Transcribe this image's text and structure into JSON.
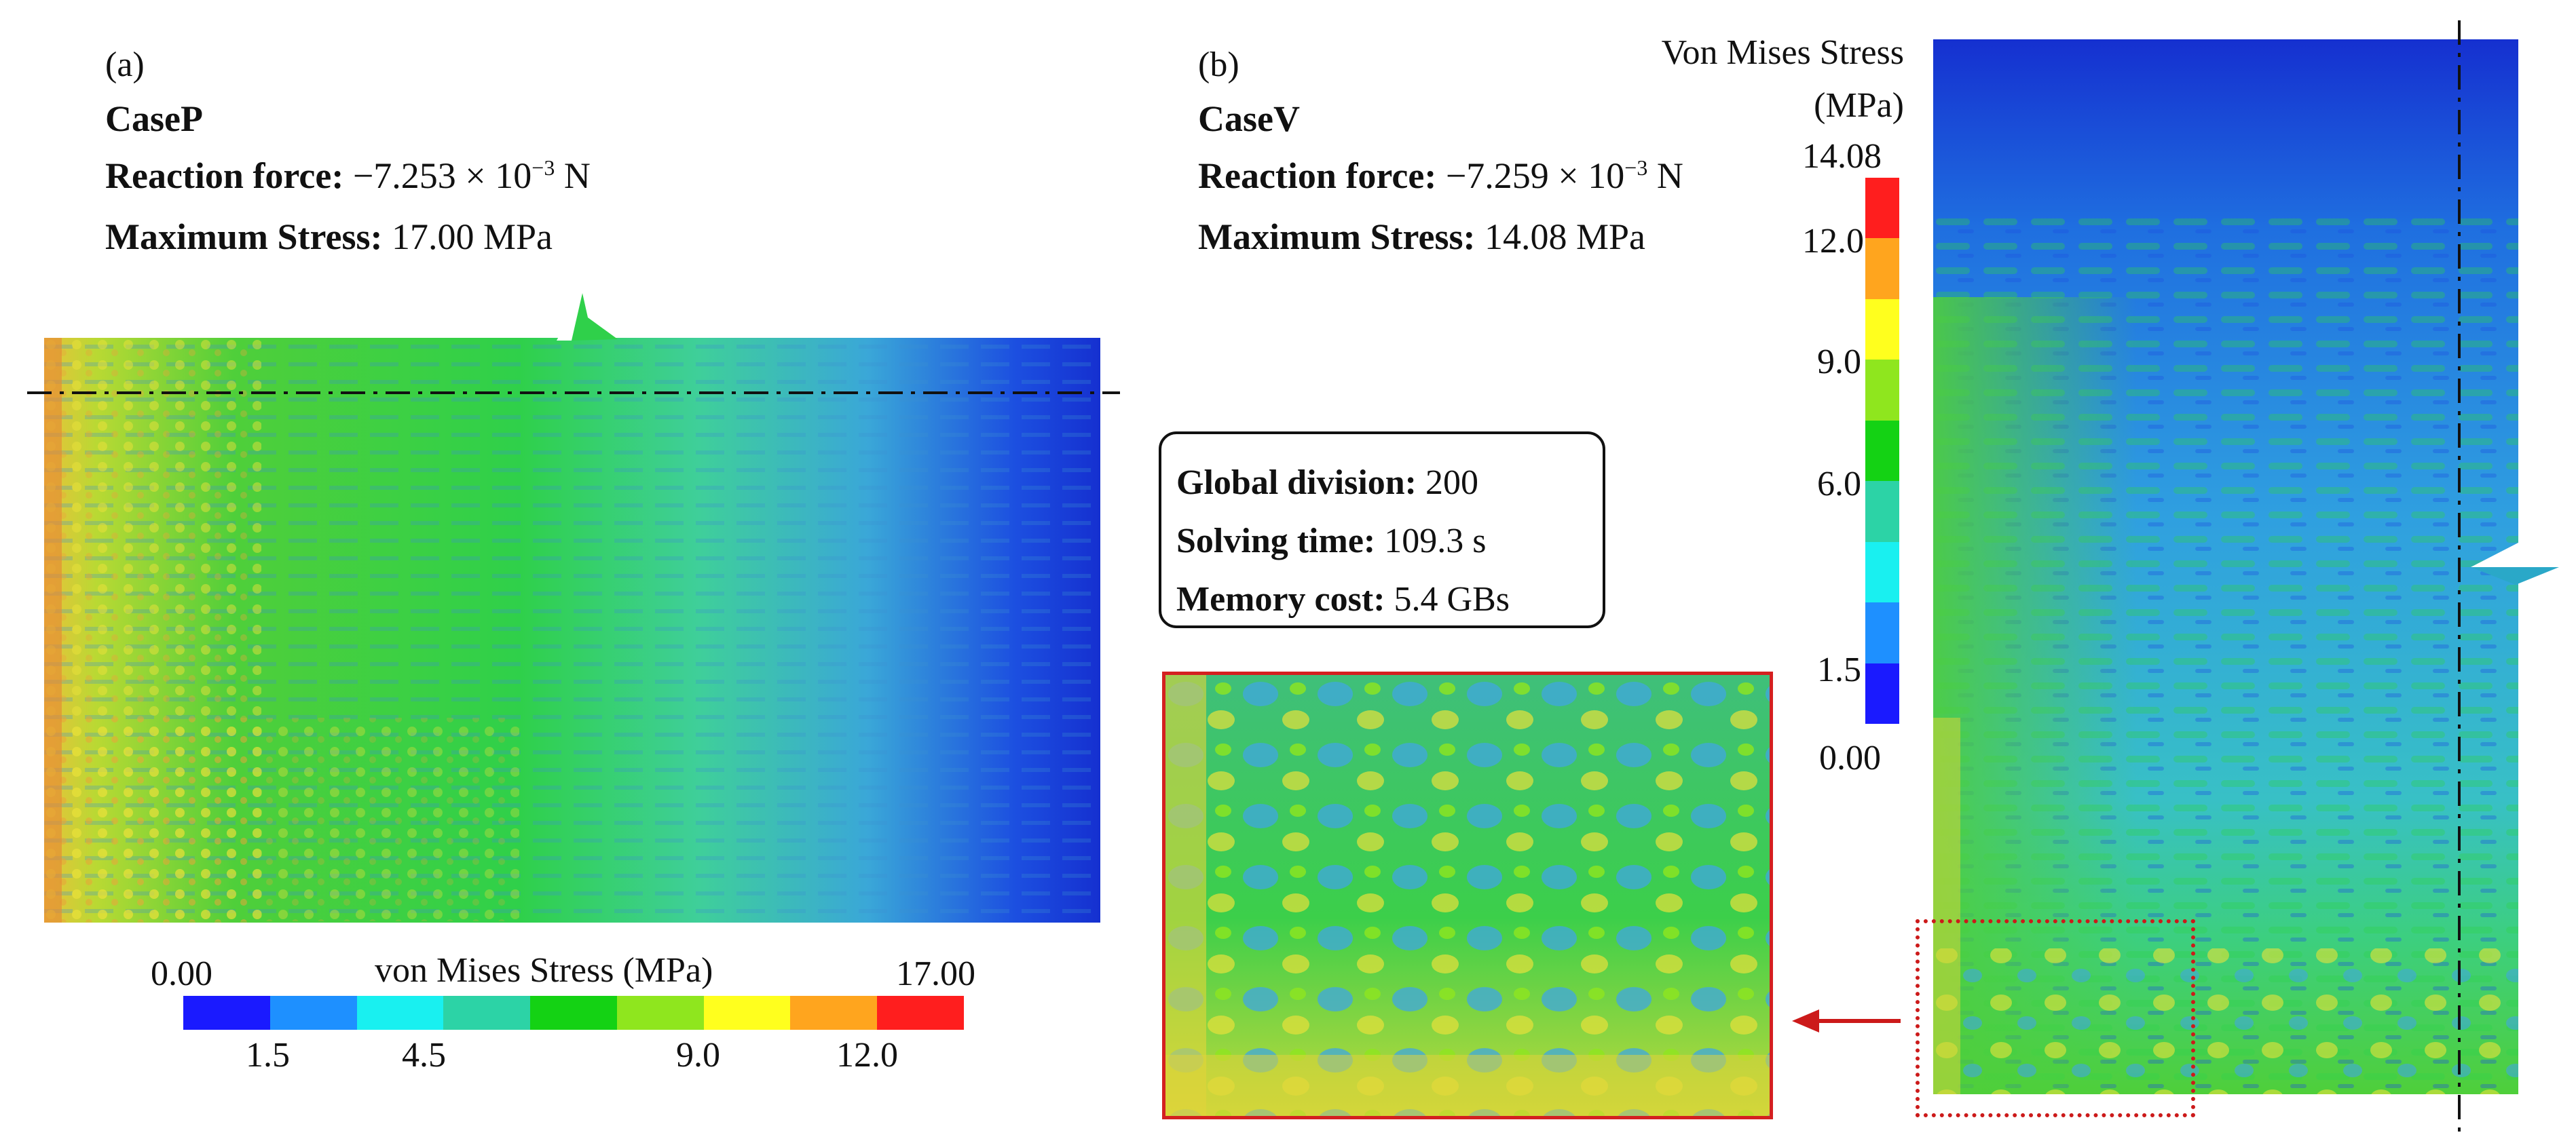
{
  "panel_a": {
    "tag": "(a)",
    "case_name": "CaseP",
    "reaction_label": "Reaction force:",
    "reaction_mantissa": "−7.253 × 10",
    "reaction_exp": "−3",
    "reaction_unit": " N",
    "stress_label": "Maximum Stress:",
    "stress_value": " 17.00 MPa",
    "colorbar": {
      "title": "von Mises Stress (MPa)",
      "min_label": "0.00",
      "max_label": "17.00",
      "ticks": [
        "1.5",
        "4.5",
        "9.0",
        "12.0"
      ],
      "colors": [
        "#1a1aff",
        "#1e90ff",
        "#19f0f0",
        "#2cd3a6",
        "#14d214",
        "#8fe61e",
        "#ffff1e",
        "#ffa51e",
        "#ff1e1e"
      ]
    }
  },
  "panel_b": {
    "tag": "(b)",
    "case_name": "CaseV",
    "reaction_label": "Reaction force:",
    "reaction_mantissa": "−7.259 × 10",
    "reaction_exp": "−3",
    "reaction_unit": " N",
    "stress_label": "Maximum Stress:",
    "stress_value": " 14.08 MPa",
    "colorbar": {
      "title_line1": "Von Mises Stress",
      "title_line2": "(MPa)",
      "max_label": "14.08",
      "min_label": "0.00",
      "ticks": [
        "12.0",
        "9.0",
        "6.0",
        "1.5"
      ],
      "colors": [
        "#ff1e1e",
        "#ffa51e",
        "#ffff1e",
        "#8fe61e",
        "#14d214",
        "#2cd3a6",
        "#19f0f0",
        "#1e90ff",
        "#1a1aff"
      ]
    }
  },
  "info_box": {
    "division_label": "Global division:",
    "division_value": " 200",
    "time_label": "Solving time:",
    "time_value": " 109.3 s",
    "memory_label": "Memory cost:",
    "memory_value": " 5.4 GBs"
  },
  "colors": {
    "zoom_frame": "#d42020",
    "arrow": "#cc1a1a",
    "dashed_box": "#cc1a1a"
  }
}
